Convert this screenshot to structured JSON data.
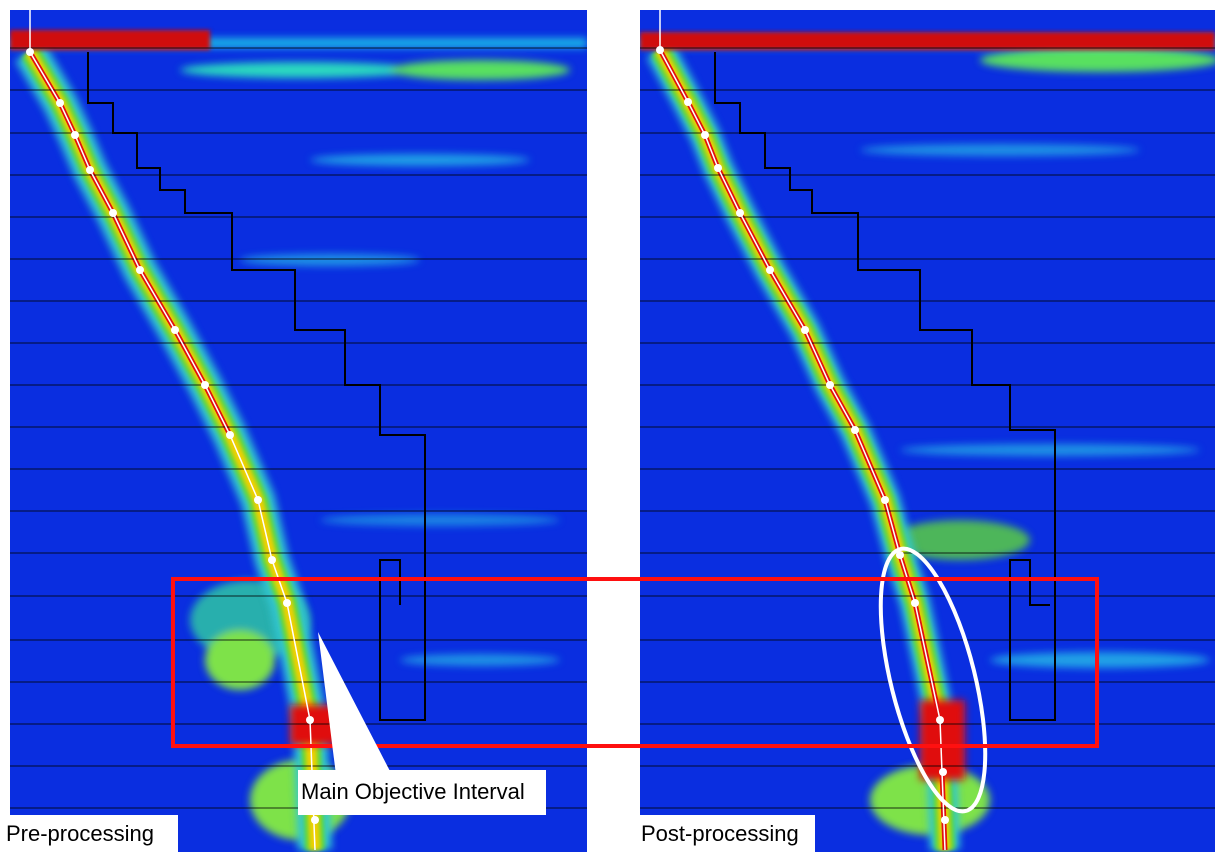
{
  "panels": [
    {
      "label": "Pre-processing"
    },
    {
      "label": "Post-processing"
    }
  ],
  "callout": "Main Objective Interval"
}
